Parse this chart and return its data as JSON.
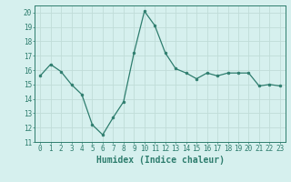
{
  "x": [
    0,
    1,
    2,
    3,
    4,
    5,
    6,
    7,
    8,
    9,
    10,
    11,
    12,
    13,
    14,
    15,
    16,
    17,
    18,
    19,
    20,
    21,
    22,
    23
  ],
  "y": [
    15.6,
    16.4,
    15.9,
    15.0,
    14.3,
    12.2,
    11.5,
    12.7,
    13.8,
    17.2,
    20.1,
    19.1,
    17.2,
    16.1,
    15.8,
    15.4,
    15.8,
    15.6,
    15.8,
    15.8,
    15.8,
    14.9,
    15.0,
    14.9
  ],
  "line_color": "#2e7d6e",
  "marker": "o",
  "markersize": 2.0,
  "linewidth": 0.9,
  "xlabel": "Humidex (Indice chaleur)",
  "xlim": [
    -0.5,
    23.5
  ],
  "ylim": [
    11,
    20.5
  ],
  "yticks": [
    11,
    12,
    13,
    14,
    15,
    16,
    17,
    18,
    19,
    20
  ],
  "xticks": [
    0,
    1,
    2,
    3,
    4,
    5,
    6,
    7,
    8,
    9,
    10,
    11,
    12,
    13,
    14,
    15,
    16,
    17,
    18,
    19,
    20,
    21,
    22,
    23
  ],
  "bg_color": "#d6f0ee",
  "grid_color": "#c0dcd8",
  "tick_fontsize": 5.5,
  "xlabel_fontsize": 7.0,
  "label_color": "#2e7d6e",
  "spine_color": "#2e7d6e"
}
